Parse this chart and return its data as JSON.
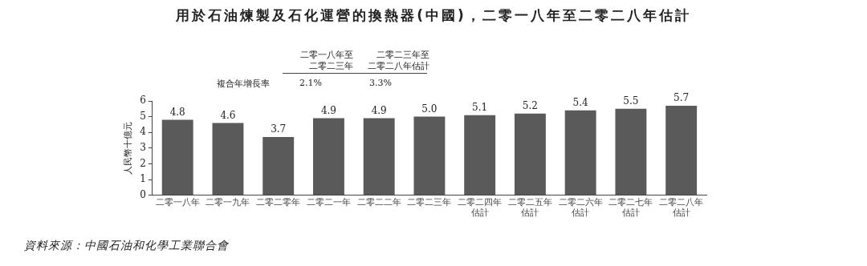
{
  "chart_data": {
    "type": "bar",
    "title": "用於石油煉製及石化運營的換熱器(中國)，二零一八年至二零二八年估計",
    "ylabel": "人民幣十億元",
    "categories": [
      "二零一八年",
      "二零一九年",
      "二零二零年",
      "二零二一年",
      "二零二二年",
      "二零二三年",
      "二零二四年估計",
      "二零二五年估計",
      "二零二六年估計",
      "二零二七年估計",
      "二零二八年估計"
    ],
    "values": [
      4.8,
      4.6,
      3.7,
      4.9,
      4.9,
      5.0,
      5.1,
      5.2,
      5.4,
      5.5,
      5.7
    ],
    "value_labels": [
      "4.8",
      "4.6",
      "3.7",
      "4.9",
      "4.9",
      "5.0",
      "5.1",
      "5.2",
      "5.4",
      "5.5",
      "5.7"
    ],
    "color": "#5a5a5a",
    "ylim": [
      0,
      6
    ],
    "yticks": [
      0,
      1,
      2,
      3,
      4,
      5,
      6
    ],
    "grid": false,
    "legend": false,
    "annotations": [
      "二零一八年至",
      "二零二三年",
      "二零二三年至",
      "二零二八年估計",
      "複合年增長率",
      "2.1%",
      "3.3%",
      "資料來源：中國石油和化學工業聯合會"
    ]
  }
}
